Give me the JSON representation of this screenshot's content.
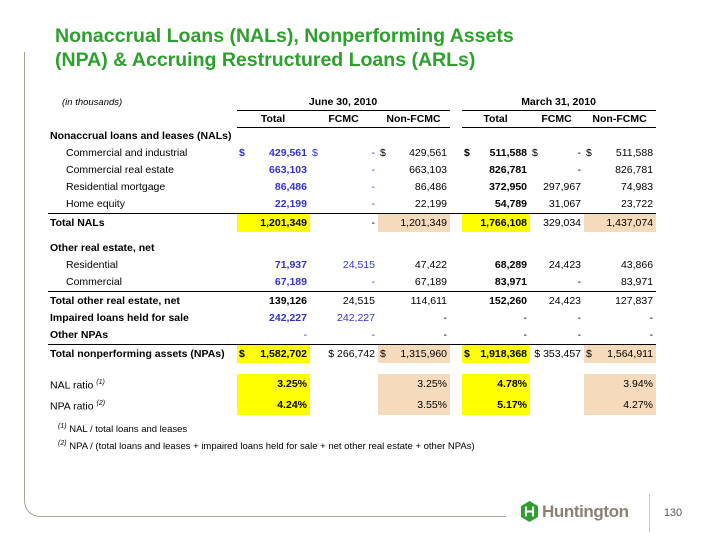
{
  "slide": {
    "title_lines": [
      "Nonaccrual Loans (NALs), Nonperforming Assets",
      "(NPA) & Accruing Restructured Loans (ARLs)"
    ],
    "page_number": "130",
    "logo_text": "Huntington"
  },
  "colors": {
    "title_green": "#2da02d",
    "logo_green": "#2e9e30",
    "logo_text_taupe": "#8a8173",
    "frame_line": "#a8a296",
    "highlight_yellow": "#ffff00",
    "highlight_peach": "#f5dbbb",
    "value_blue": "#3333cc"
  },
  "table": {
    "units_note": "(in thousands)",
    "period_headers": [
      "June 30, 2010",
      "March 31, 2010"
    ],
    "sub_headers": [
      "Total",
      "FCMC",
      "Non-FCMC"
    ],
    "rows": [
      {
        "t": "section",
        "l": "Nonaccrual loans and leases (NALs)"
      },
      {
        "t": "data",
        "l": "Commercial and industrial",
        "c": [
          {
            "d": "$",
            "v": "429,561",
            "b": true,
            "u": true
          },
          {
            "d": "$",
            "v": "-",
            "u": true
          },
          {
            "d": "$",
            "v": "429,561"
          },
          {
            "d": "$",
            "v": "511,588",
            "b": true
          },
          {
            "d": "$",
            "v": "-"
          },
          {
            "d": "$",
            "v": "511,588"
          }
        ]
      },
      {
        "t": "data",
        "l": "Commercial real estate",
        "c": [
          {
            "v": "663,103",
            "b": true,
            "u": true
          },
          {
            "v": "-",
            "u": true
          },
          {
            "v": "663,103"
          },
          {
            "v": "826,781",
            "b": true
          },
          {
            "v": "-"
          },
          {
            "v": "826,781"
          }
        ]
      },
      {
        "t": "data",
        "l": "Residential mortgage",
        "c": [
          {
            "v": "86,486",
            "b": true,
            "u": true
          },
          {
            "v": "-",
            "u": true
          },
          {
            "v": "86,486"
          },
          {
            "v": "372,950",
            "b": true
          },
          {
            "v": "297,967"
          },
          {
            "v": "74,983"
          }
        ]
      },
      {
        "t": "data",
        "l": "Home equity",
        "c": [
          {
            "v": "22,199",
            "b": true,
            "u": true
          },
          {
            "v": "-",
            "u": true
          },
          {
            "v": "22,199"
          },
          {
            "v": "54,789",
            "b": true
          },
          {
            "v": "31,067"
          },
          {
            "v": "23,722"
          }
        ]
      },
      {
        "t": "total",
        "l": "Total NALs",
        "c": [
          {
            "v": "1,201,349",
            "b": true,
            "h": "y"
          },
          {
            "v": "-"
          },
          {
            "v": "1,201,349",
            "h": "p"
          },
          {
            "v": "1,766,108",
            "b": true,
            "h": "y"
          },
          {
            "v": "329,034"
          },
          {
            "v": "1,437,074",
            "h": "p"
          }
        ]
      },
      {
        "t": "spacer"
      },
      {
        "t": "section",
        "l": "Other real estate, net"
      },
      {
        "t": "data",
        "l": "Residential",
        "c": [
          {
            "v": "71,937",
            "b": true,
            "u": true
          },
          {
            "v": "24,515",
            "u": true
          },
          {
            "v": "47,422"
          },
          {
            "v": "68,289",
            "b": true
          },
          {
            "v": "24,423"
          },
          {
            "v": "43,866"
          }
        ]
      },
      {
        "t": "data",
        "l": "Commercial",
        "c": [
          {
            "v": "67,189",
            "b": true,
            "u": true
          },
          {
            "v": "-",
            "u": true
          },
          {
            "v": "67,189"
          },
          {
            "v": "83,971",
            "b": true
          },
          {
            "v": "-"
          },
          {
            "v": "83,971"
          }
        ]
      },
      {
        "t": "total",
        "l": "Total other real estate, net",
        "c": [
          {
            "v": "139,126",
            "b": true
          },
          {
            "v": "24,515"
          },
          {
            "v": "114,611"
          },
          {
            "v": "152,260",
            "b": true
          },
          {
            "v": "24,423"
          },
          {
            "v": "127,837"
          }
        ]
      },
      {
        "t": "lead",
        "l": "Impaired loans held for sale",
        "c": [
          {
            "v": "242,227",
            "b": true,
            "u": true
          },
          {
            "v": "242,227",
            "u": true
          },
          {
            "v": "-"
          },
          {
            "v": "-"
          },
          {
            "v": "-"
          },
          {
            "v": "-"
          }
        ]
      },
      {
        "t": "lead",
        "l": "Other NPAs",
        "c": [
          {
            "v": "-",
            "u": true
          },
          {
            "v": "-",
            "u": true
          },
          {
            "v": "-"
          },
          {
            "v": "-"
          },
          {
            "v": "-"
          },
          {
            "v": "-"
          }
        ]
      },
      {
        "t": "total",
        "l": "Total nonperforming assets (NPAs)",
        "c": [
          {
            "d": "$",
            "v": "1,582,702",
            "b": true,
            "h": "y"
          },
          {
            "v": "$ 266,742"
          },
          {
            "d": "$",
            "v": "1,315,960",
            "h": "p"
          },
          {
            "d": "$",
            "v": "1,918,368",
            "b": true,
            "h": "y"
          },
          {
            "v": "$ 353,457"
          },
          {
            "d": "$",
            "v": "1,564,911",
            "h": "p"
          }
        ]
      }
    ]
  },
  "ratios": {
    "rows": [
      {
        "t": "ratio",
        "l": "NAL ratio",
        "sup": "(1)",
        "c": [
          {
            "v": "3.25%",
            "b": true,
            "h": "y"
          },
          {},
          {
            "v": "3.25%",
            "h": "p"
          },
          {
            "v": "4.78%",
            "b": true,
            "h": "y"
          },
          {},
          {
            "v": "3.94%",
            "h": "p"
          }
        ]
      },
      {
        "t": "ratio",
        "l": "NPA ratio",
        "sup": "(2)",
        "c": [
          {
            "v": "4.24%",
            "b": true,
            "h": "y"
          },
          {},
          {
            "v": "3.55%",
            "h": "p"
          },
          {
            "v": "5.17%",
            "b": true,
            "h": "y"
          },
          {},
          {
            "v": "4.27%",
            "h": "p"
          }
        ]
      }
    ]
  },
  "footnotes": [
    {
      "sup": "(1)",
      "text": "NAL / total loans and leases"
    },
    {
      "sup": "(2)",
      "text": "NPA / (total loans and leases + impaired loans held for sale + net other real estate + other NPAs)"
    }
  ]
}
